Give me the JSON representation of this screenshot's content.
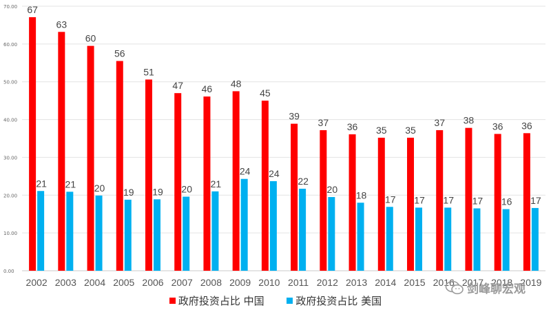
{
  "chart_data": {
    "type": "bar",
    "categories": [
      "2002",
      "2003",
      "2004",
      "2005",
      "2006",
      "2007",
      "2008",
      "2009",
      "2010",
      "2011",
      "2012",
      "2013",
      "2014",
      "2015",
      "2016",
      "2017",
      "2018",
      "2019"
    ],
    "series": [
      {
        "name": "政府投资占比 中国",
        "color": "#ff0000",
        "values": [
          67.1,
          63.2,
          59.5,
          55.5,
          50.6,
          47.0,
          46.1,
          47.5,
          45.0,
          38.9,
          37.2,
          36.1,
          35.2,
          35.2,
          37.2,
          37.8,
          36.2,
          36.4
        ],
        "labels": [
          "67",
          "63",
          "60",
          "56",
          "51",
          "47",
          "46",
          "48",
          "45",
          "39",
          "37",
          "36",
          "35",
          "35",
          "37",
          "38",
          "36",
          "36"
        ]
      },
      {
        "name": "政府投资占比 美国",
        "color": "#00b0f0",
        "values": [
          21.1,
          20.9,
          19.9,
          18.8,
          18.9,
          19.6,
          21.0,
          24.3,
          23.7,
          21.7,
          19.5,
          18.0,
          16.9,
          16.7,
          16.7,
          16.5,
          16.3,
          16.6
        ],
        "labels": [
          "21",
          "21",
          "20",
          "19",
          "19",
          "20",
          "21",
          "24",
          "24",
          "22",
          "20",
          "18",
          "17",
          "17",
          "17",
          "17",
          "16",
          "17"
        ]
      }
    ],
    "y_ticks": [
      "0.00",
      "10.00",
      "20.00",
      "30.00",
      "40.00",
      "50.00",
      "60.00",
      "70.00"
    ],
    "ylim": [
      0,
      70
    ],
    "grid": true,
    "legend_position": "bottom"
  },
  "watermark": {
    "text": "剑峰聊宏观",
    "icon": "wechat-icon"
  }
}
